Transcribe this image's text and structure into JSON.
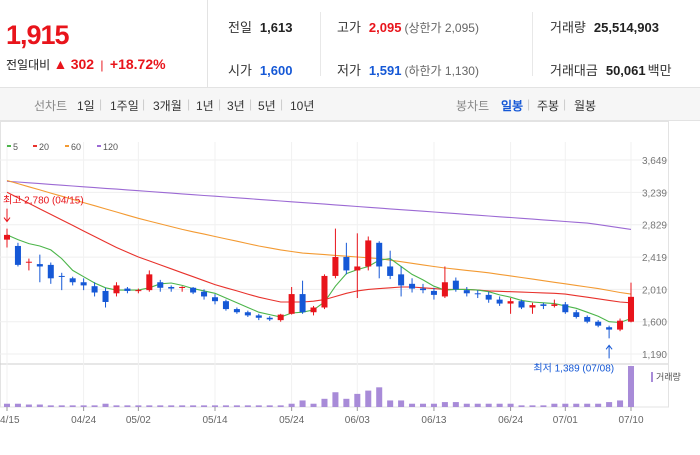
{
  "summary": {
    "price": "1,915",
    "change_label": "전일대비",
    "change_arrow": "▲",
    "change_value": "302",
    "change_sep": "|",
    "change_pct": "+18.72%",
    "prev_close": {
      "label": "전일",
      "value": "1,613"
    },
    "open": {
      "label": "시가",
      "value": "1,600"
    },
    "high": {
      "label": "고가",
      "value": "2,095",
      "sub": "(상한가 2,095)"
    },
    "low": {
      "label": "저가",
      "value": "1,591",
      "sub": "(하한가 1,130)"
    },
    "volume": {
      "label": "거래량",
      "value": "25,514,903"
    },
    "amount": {
      "label": "거래대금",
      "value": "50,061",
      "unit": "백만"
    }
  },
  "tabs": {
    "line_label": "선차트",
    "line_periods": [
      "1일",
      "1주일",
      "3개월",
      "1년",
      "3년",
      "5년",
      "10년"
    ],
    "candle_label": "봉차트",
    "candle_periods": [
      "일봉",
      "주봉",
      "월봉"
    ],
    "candle_selected": "일봉",
    "divider": "|"
  },
  "colors": {
    "up": "#e8141b",
    "down": "#1558d6",
    "ma5": "#4cb54a",
    "ma20": "#e8322c",
    "ma60": "#f39a32",
    "ma120": "#9c6ad4",
    "volume": "#a88bd8"
  },
  "chart_data": {
    "type": "candlestick",
    "title": "",
    "legend": [
      {
        "name": "5",
        "color": "#4cb54a"
      },
      {
        "name": "20",
        "color": "#e8322c"
      },
      {
        "name": "60",
        "color": "#f39a32"
      },
      {
        "name": "120",
        "color": "#9c6ad4"
      }
    ],
    "ylim": [
      1140,
      3700
    ],
    "y_ticks": [
      "3,649",
      "3,239",
      "2,829",
      "2,419",
      "2,010",
      "1,600",
      "1,190"
    ],
    "y_tick_values": [
      3649,
      3239,
      2829,
      2419,
      2010,
      1600,
      1190
    ],
    "x_ticks": [
      {
        "i": 0,
        "label": "04/15"
      },
      {
        "i": 7,
        "label": "04/24"
      },
      {
        "i": 12,
        "label": "05/02"
      },
      {
        "i": 19,
        "label": "05/14"
      },
      {
        "i": 26,
        "label": "05/24"
      },
      {
        "i": 32,
        "label": "06/03"
      },
      {
        "i": 39,
        "label": "06/13"
      },
      {
        "i": 46,
        "label": "06/24"
      },
      {
        "i": 51,
        "label": "07/01"
      },
      {
        "i": 57,
        "label": "07/10"
      }
    ],
    "annotations": {
      "high": {
        "text": "최고 2,780 (04/15)",
        "index": 0,
        "value": 2780
      },
      "low": {
        "text": "최저 1,389 (07/08)",
        "index": 55,
        "value": 1389
      }
    },
    "volume_label": "거래량",
    "candles": [
      [
        2640,
        2780,
        2540,
        2700
      ],
      [
        2560,
        2600,
        2300,
        2320
      ],
      [
        2350,
        2400,
        2250,
        2360
      ],
      [
        2330,
        2450,
        2100,
        2300
      ],
      [
        2320,
        2350,
        2080,
        2150
      ],
      [
        2180,
        2220,
        2000,
        2170
      ],
      [
        2150,
        2170,
        2060,
        2100
      ],
      [
        2100,
        2150,
        2000,
        2060
      ],
      [
        2050,
        2100,
        1920,
        1970
      ],
      [
        1990,
        2030,
        1780,
        1850
      ],
      [
        1960,
        2100,
        1920,
        2060
      ],
      [
        2020,
        2040,
        1960,
        1990
      ],
      [
        1990,
        2020,
        1960,
        2000
      ],
      [
        2000,
        2250,
        1980,
        2200
      ],
      [
        2100,
        2130,
        1980,
        2030
      ],
      [
        2040,
        2060,
        1980,
        2020
      ],
      [
        2030,
        2050,
        1980,
        2040
      ],
      [
        2030,
        2040,
        1950,
        1970
      ],
      [
        1980,
        2010,
        1880,
        1920
      ],
      [
        1910,
        1950,
        1820,
        1860
      ],
      [
        1860,
        1880,
        1740,
        1760
      ],
      [
        1760,
        1780,
        1700,
        1720
      ],
      [
        1720,
        1740,
        1660,
        1680
      ],
      [
        1680,
        1700,
        1620,
        1650
      ],
      [
        1650,
        1670,
        1610,
        1630
      ],
      [
        1620,
        1700,
        1600,
        1690
      ],
      [
        1700,
        2040,
        1690,
        1950
      ],
      [
        1950,
        2120,
        1700,
        1720
      ],
      [
        1720,
        1800,
        1680,
        1780
      ],
      [
        1780,
        2200,
        1760,
        2180
      ],
      [
        2180,
        2780,
        2150,
        2420
      ],
      [
        2420,
        2600,
        2200,
        2250
      ],
      [
        2250,
        2720,
        1900,
        2300
      ],
      [
        2300,
        2680,
        2250,
        2630
      ],
      [
        2600,
        2620,
        2150,
        2300
      ],
      [
        2300,
        2500,
        2140,
        2180
      ],
      [
        2200,
        2300,
        1920,
        2060
      ],
      [
        2080,
        2150,
        1970,
        2020
      ],
      [
        2020,
        2080,
        1960,
        2000
      ],
      [
        1990,
        2030,
        1880,
        1940
      ],
      [
        1920,
        2300,
        1900,
        2100
      ],
      [
        2120,
        2160,
        1980,
        2010
      ],
      [
        2000,
        2040,
        1920,
        1960
      ],
      [
        1960,
        2000,
        1900,
        1950
      ],
      [
        1940,
        1980,
        1840,
        1880
      ],
      [
        1880,
        1920,
        1800,
        1830
      ],
      [
        1830,
        1900,
        1700,
        1860
      ],
      [
        1860,
        1880,
        1760,
        1780
      ],
      [
        1780,
        1840,
        1700,
        1810
      ],
      [
        1820,
        1840,
        1760,
        1800
      ],
      [
        1800,
        1880,
        1780,
        1820
      ],
      [
        1820,
        1850,
        1700,
        1720
      ],
      [
        1720,
        1750,
        1640,
        1660
      ],
      [
        1660,
        1680,
        1580,
        1600
      ],
      [
        1600,
        1620,
        1530,
        1550
      ],
      [
        1530,
        1550,
        1389,
        1500
      ],
      [
        1500,
        1640,
        1480,
        1613
      ],
      [
        1600,
        2095,
        1591,
        1915
      ]
    ],
    "ma5": [
      2700,
      2640,
      2590,
      2560,
      2510,
      2400,
      2250,
      2170,
      2090,
      2030,
      2000,
      2000,
      2000,
      2030,
      2080,
      2090,
      2060,
      2020,
      1990,
      1960,
      1900,
      1840,
      1780,
      1720,
      1690,
      1660,
      1710,
      1720,
      1750,
      1850,
      2050,
      2210,
      2260,
      2300,
      2380,
      2400,
      2300,
      2200,
      2130,
      2050,
      2000,
      2010,
      2010,
      2000,
      1980,
      1940,
      1910,
      1870,
      1850,
      1840,
      1830,
      1800,
      1770,
      1720,
      1670,
      1600,
      1590,
      1640
    ],
    "ma20": [
      3240,
      3170,
      3100,
      3030,
      2960,
      2890,
      2820,
      2750,
      2680,
      2610,
      2540,
      2480,
      2420,
      2370,
      2320,
      2270,
      2220,
      2170,
      2120,
      2070,
      2030,
      1990,
      1950,
      1910,
      1880,
      1850,
      1850,
      1850,
      1860,
      1880,
      1920,
      1960,
      1990,
      2010,
      2020,
      2030,
      2040,
      2040,
      2030,
      2020,
      2010,
      2010,
      2010,
      2000,
      1990,
      1985,
      1980,
      1975,
      1970,
      1965,
      1960,
      1950,
      1930,
      1910,
      1890,
      1870,
      1850,
      1840
    ],
    "ma60": [
      3390,
      3350,
      3310,
      3270,
      3230,
      3190,
      3150,
      3110,
      3070,
      3030,
      2990,
      2950,
      2910,
      2875,
      2840,
      2805,
      2770,
      2740,
      2710,
      2680,
      2650,
      2620,
      2590,
      2560,
      2535,
      2510,
      2490,
      2470,
      2460,
      2450,
      2440,
      2430,
      2420,
      2410,
      2400,
      2380,
      2360,
      2340,
      2320,
      2300,
      2280,
      2265,
      2250,
      2235,
      2220,
      2200,
      2180,
      2160,
      2140,
      2120,
      2100,
      2080,
      2060,
      2040,
      2020,
      1995,
      1970,
      1950
    ],
    "ma120": [
      3380,
      3370,
      3360,
      3350,
      3340,
      3330,
      3320,
      3310,
      3300,
      3290,
      3280,
      3270,
      3260,
      3250,
      3240,
      3230,
      3220,
      3210,
      3200,
      3190,
      3180,
      3170,
      3160,
      3150,
      3140,
      3130,
      3120,
      3110,
      3100,
      3090,
      3080,
      3070,
      3060,
      3050,
      3040,
      3030,
      3020,
      3010,
      3000,
      2990,
      2980,
      2970,
      2960,
      2950,
      2940,
      2930,
      2920,
      2910,
      2900,
      2890,
      2880,
      2870,
      2860,
      2850,
      2830,
      2810,
      2790,
      2770
    ],
    "volume": [
      2,
      2,
      1.5,
      1.5,
      1,
      1,
      1,
      1,
      1,
      2,
      1,
      1,
      1,
      1,
      1,
      1,
      1,
      1,
      1,
      1,
      1,
      1,
      1,
      1,
      1,
      1,
      2,
      4,
      2,
      5,
      9,
      5,
      8,
      10,
      12,
      4,
      4,
      2,
      2,
      2,
      3,
      3,
      2,
      2,
      2,
      2,
      2,
      1,
      1,
      1,
      2,
      2,
      2,
      2,
      2,
      3,
      4,
      25
    ]
  }
}
